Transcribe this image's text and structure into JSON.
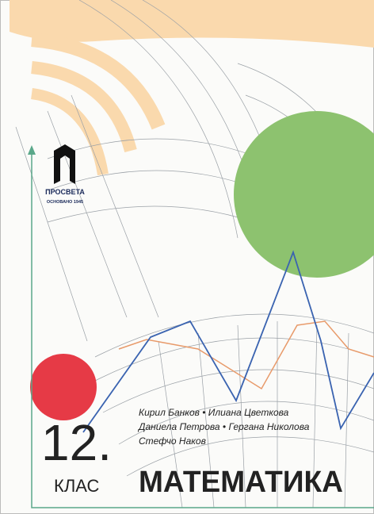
{
  "publisher": {
    "name": "ПРОСВЕТА",
    "founded": "ОСНОВАНО 1945"
  },
  "grade": {
    "number": "12.",
    "label": "КЛАС"
  },
  "authors": [
    "Кирил Банков • Илиана Цветкова",
    "Даниела Петрова • Гергана Николова",
    "Стефчо Наков"
  ],
  "title": "МАТЕМАТИКА"
}
